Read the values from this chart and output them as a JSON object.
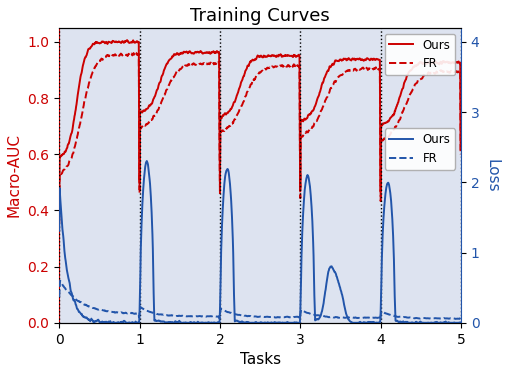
{
  "title": "Training Curves",
  "xlabel": "Tasks",
  "ylabel_left": "Macro-AUC",
  "ylabel_right": "Loss",
  "background_color": "#dde3f0",
  "num_tasks": 5,
  "n_per_task": 200,
  "vline_positions": [
    0,
    1,
    2,
    3,
    4,
    5
  ],
  "auc_ylim": [
    0.0,
    1.05
  ],
  "loss_ylim": [
    0.0,
    4.2
  ],
  "loss_yticks": [
    0,
    1,
    2,
    3,
    4
  ],
  "auc_yticks": [
    0.0,
    0.2,
    0.4,
    0.6,
    0.8,
    1.0
  ],
  "red_color": "#cc0000",
  "blue_color": "#2255aa",
  "title_fontsize": 13,
  "label_fontsize": 11,
  "legend_fontsize": 8.5
}
